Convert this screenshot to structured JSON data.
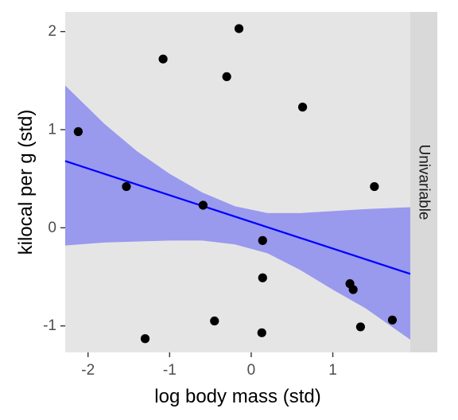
{
  "chart_data": {
    "type": "scatter",
    "xlabel": "log body mass (std)",
    "ylabel": "kilocal per g (std)",
    "facet_label": "Univariable",
    "xlim": [
      -2.28,
      1.95
    ],
    "ylim": [
      -1.27,
      2.2
    ],
    "xticks": [
      -2,
      -1,
      0,
      1
    ],
    "yticks": [
      -1,
      0,
      1,
      2
    ],
    "grid": false,
    "points": [
      {
        "x": -2.12,
        "y": 0.98
      },
      {
        "x": -1.53,
        "y": 0.42
      },
      {
        "x": -1.3,
        "y": -1.13
      },
      {
        "x": -1.08,
        "y": 1.72
      },
      {
        "x": -0.59,
        "y": 0.23
      },
      {
        "x": -0.45,
        "y": -0.95
      },
      {
        "x": -0.3,
        "y": 1.54
      },
      {
        "x": -0.15,
        "y": 2.03
      },
      {
        "x": 0.13,
        "y": -1.07
      },
      {
        "x": 0.14,
        "y": -0.13
      },
      {
        "x": 0.14,
        "y": -0.51
      },
      {
        "x": 0.63,
        "y": 1.23
      },
      {
        "x": 1.21,
        "y": -0.57
      },
      {
        "x": 1.25,
        "y": -0.63
      },
      {
        "x": 1.34,
        "y": -1.01
      },
      {
        "x": 1.51,
        "y": 0.42
      },
      {
        "x": 1.73,
        "y": -0.94
      }
    ],
    "fit_line": {
      "x": [
        -2.28,
        1.95
      ],
      "y": [
        0.68,
        -0.47
      ],
      "color": "#0000ff"
    },
    "confidence_band": {
      "color": "#9999ee",
      "x": [
        -2.28,
        -1.8,
        -1.4,
        -1.0,
        -0.6,
        -0.2,
        0.2,
        0.6,
        1.0,
        1.4,
        1.95
      ],
      "upper": [
        1.45,
        1.06,
        0.78,
        0.55,
        0.36,
        0.22,
        0.15,
        0.15,
        0.17,
        0.19,
        0.21
      ],
      "lower": [
        -0.18,
        -0.15,
        -0.14,
        -0.13,
        -0.13,
        -0.17,
        -0.26,
        -0.43,
        -0.63,
        -0.82,
        -1.14
      ]
    },
    "colors": {
      "panel_background": "#e5e5e5",
      "strip_background": "#d9d9d9",
      "points": "#000000"
    }
  }
}
